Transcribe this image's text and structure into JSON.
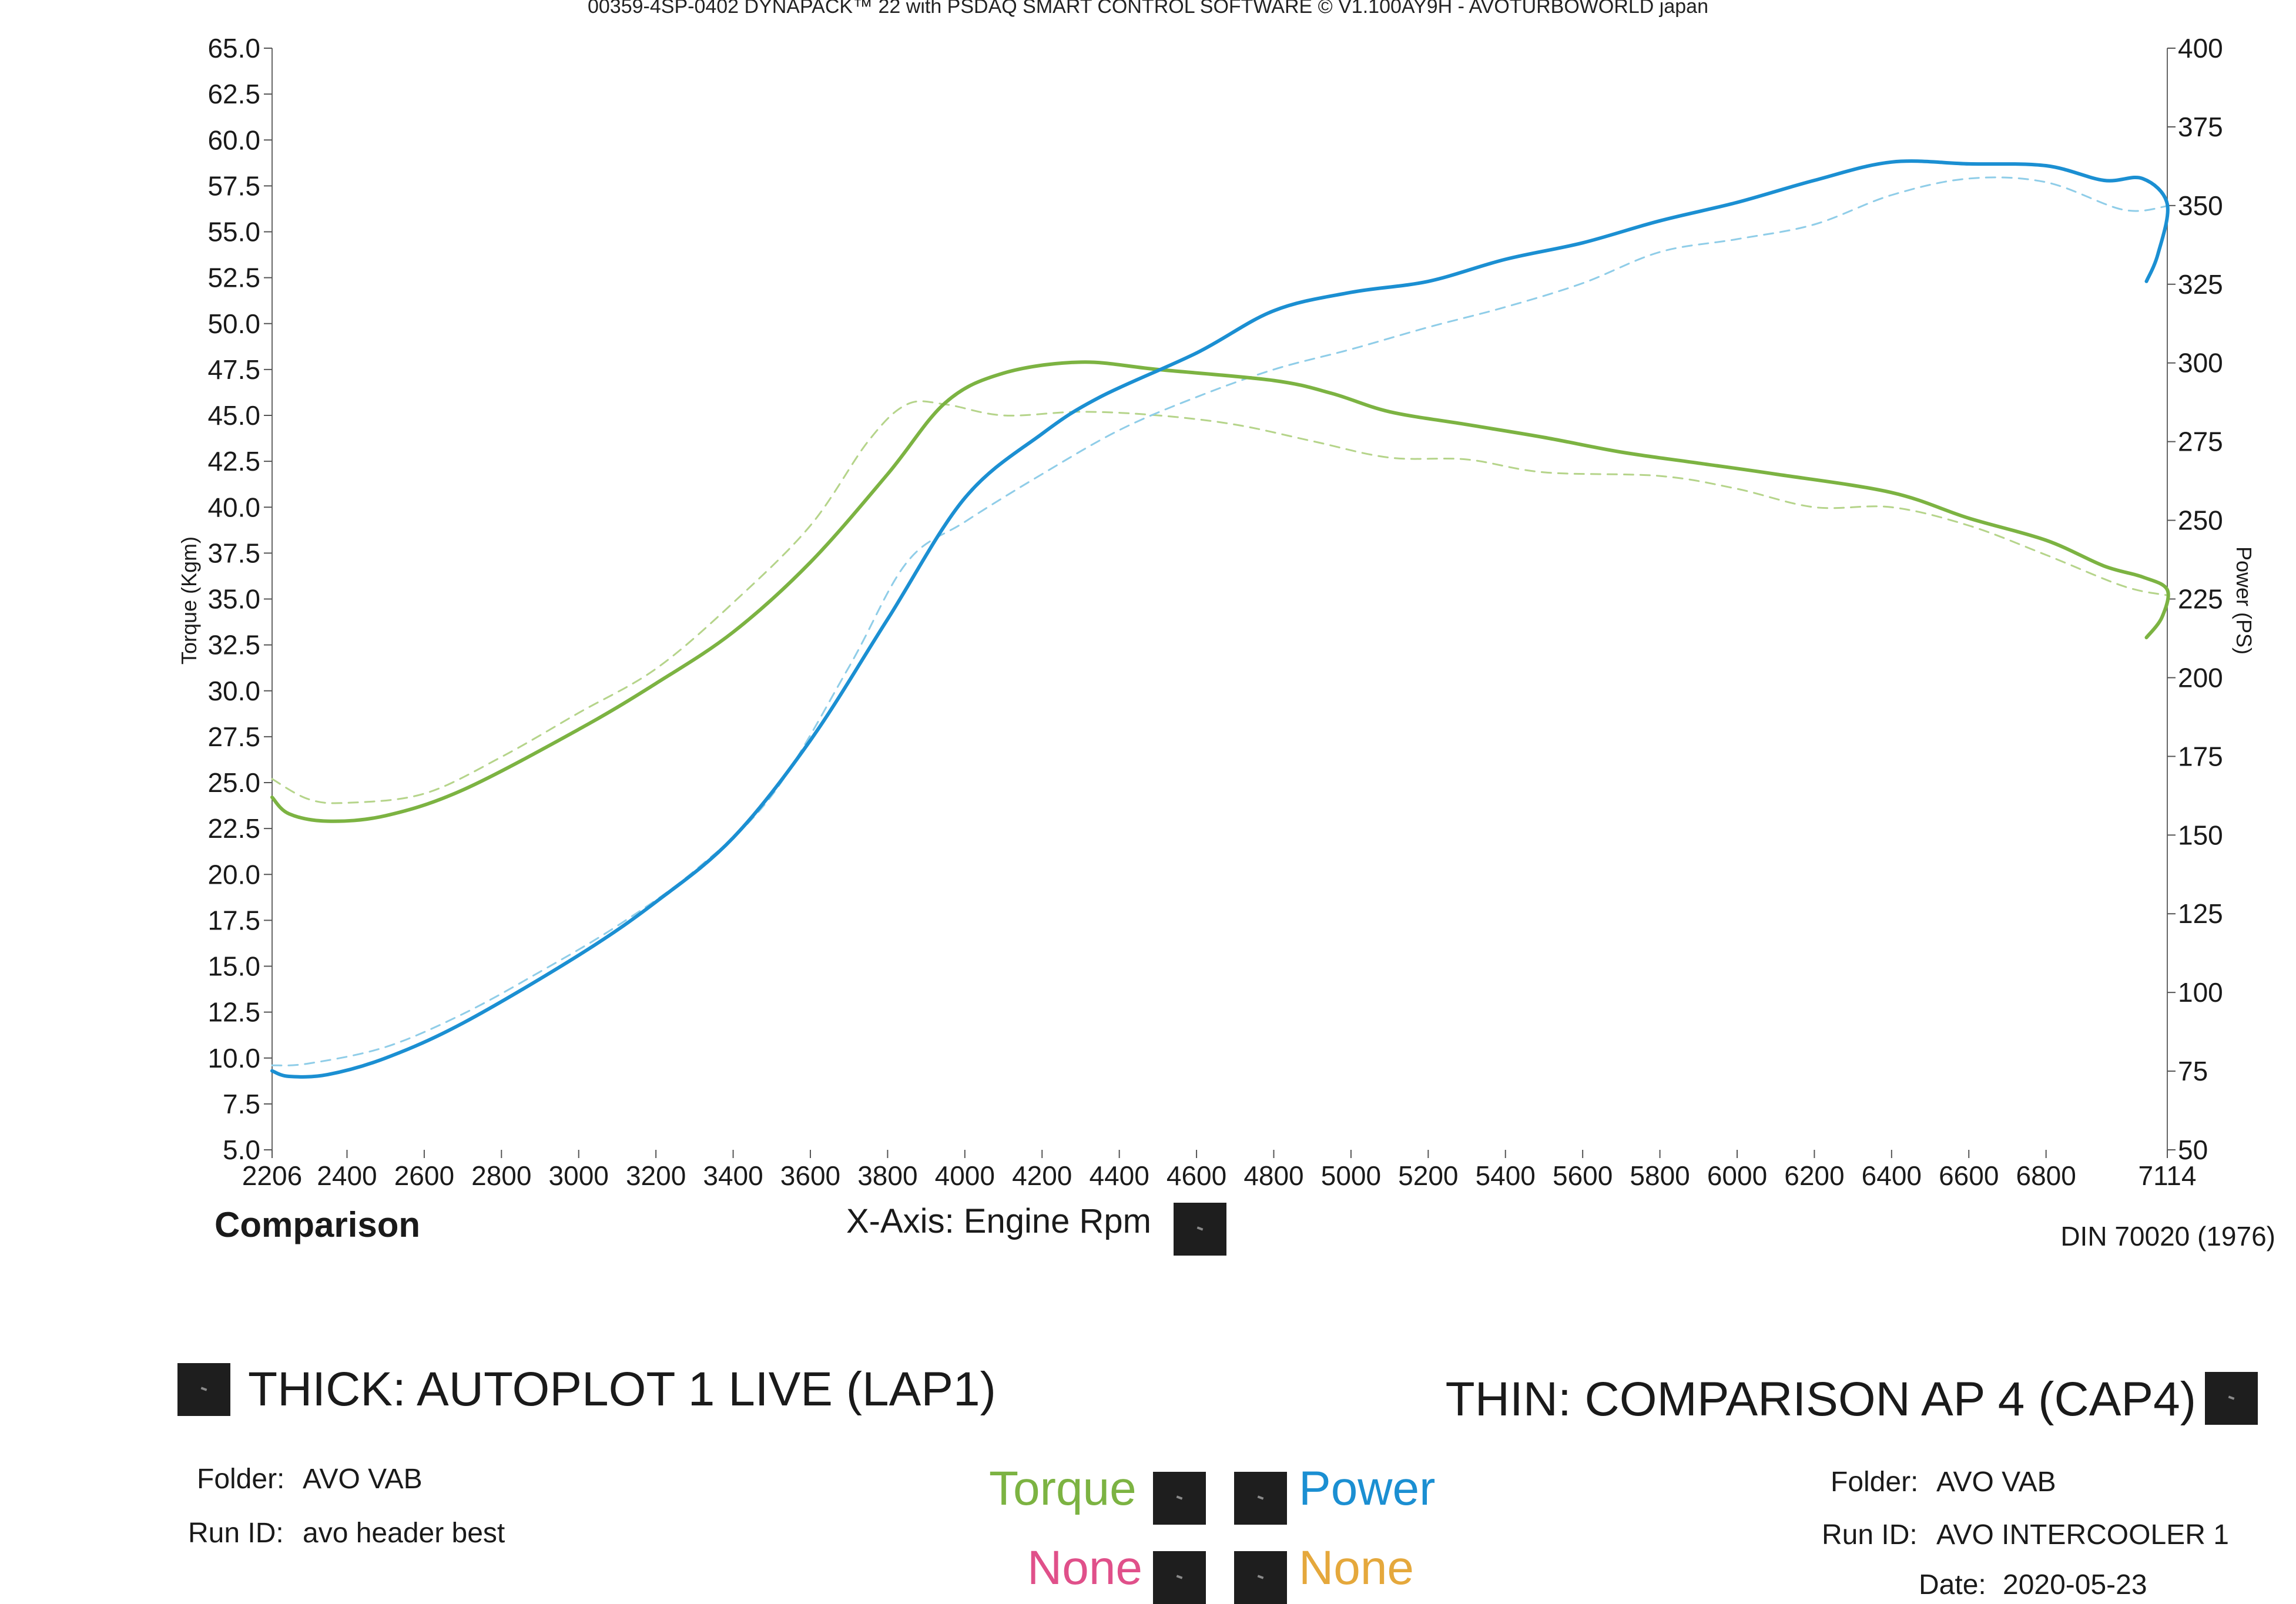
{
  "header": {
    "title": "00359-4SP-0402 DYNAPACK™ 22 with PSDAQ SMART CONTROL SOFTWARE © V1.100AY9H - AVOTURBOWORLD japan"
  },
  "footer": {
    "mode_label": "Comparison",
    "xaxis_label": "X-Axis: Engine Rpm",
    "standard": "DIN 70020 (1976)"
  },
  "runs": {
    "thick": {
      "label": "THICK: AUTOPLOT 1 LIVE (LAP1)",
      "folder_key": "Folder:",
      "folder": "AVO VAB",
      "runid_key": "Run ID:",
      "runid": "avo header best"
    },
    "thin": {
      "label": "THIN: COMPARISON AP 4 (CAP4)",
      "folder_key": "Folder:",
      "folder": "AVO VAB",
      "runid_key": "Run ID:",
      "runid": "AVO INTERCOOLER 1",
      "date_key": "Date:",
      "date": "2020-05-23"
    }
  },
  "legend": {
    "torque": "Torque",
    "power": "Power",
    "none1": "None",
    "none2": "None",
    "colors": {
      "torque": "#7cb342",
      "power": "#1b8fd2",
      "none1": "#e0508a",
      "none2": "#e5a83c"
    }
  },
  "chart_data": {
    "type": "line",
    "xlabel": "Engine Rpm",
    "ylabel_left": "Torque (Kgm)",
    "ylabel_right": "Power (PS)",
    "xlim": [
      2206,
      7114
    ],
    "ylim_left": [
      5.0,
      65.0
    ],
    "ylim_right": [
      50,
      400
    ],
    "x_ticks": [
      "2206",
      "2400",
      "2600",
      "2800",
      "3000",
      "3200",
      "3400",
      "3600",
      "3800",
      "4000",
      "4200",
      "4400",
      "4600",
      "4800",
      "5000",
      "5200",
      "5400",
      "5600",
      "5800",
      "6000",
      "6200",
      "6400",
      "6600",
      "6800",
      "7114"
    ],
    "y_left_ticks": [
      "65.0",
      "62.5",
      "60.0",
      "57.5",
      "55.0",
      "52.5",
      "50.0",
      "47.5",
      "45.0",
      "42.5",
      "40.0",
      "37.5",
      "35.0",
      "32.5",
      "30.0",
      "27.5",
      "25.0",
      "22.5",
      "20.0",
      "17.5",
      "15.0",
      "12.5",
      "10.0",
      "7.5",
      "5.0"
    ],
    "y_right_ticks": [
      "400",
      "375",
      "350",
      "325",
      "300",
      "275",
      "250",
      "225",
      "200",
      "175",
      "150",
      "125",
      "100",
      "75",
      "50"
    ],
    "series": [
      {
        "name": "Torque",
        "run": "THICK",
        "axis": "left",
        "color": "#7cb342",
        "points": [
          [
            2206,
            24.2
          ],
          [
            2250,
            23.3
          ],
          [
            2350,
            22.9
          ],
          [
            2500,
            23.2
          ],
          [
            2700,
            24.6
          ],
          [
            3000,
            27.9
          ],
          [
            3200,
            30.4
          ],
          [
            3400,
            33.2
          ],
          [
            3600,
            37.0
          ],
          [
            3800,
            41.8
          ],
          [
            3950,
            45.7
          ],
          [
            4100,
            47.3
          ],
          [
            4300,
            47.9
          ],
          [
            4500,
            47.5
          ],
          [
            4800,
            46.9
          ],
          [
            4950,
            46.2
          ],
          [
            5100,
            45.2
          ],
          [
            5300,
            44.5
          ],
          [
            5500,
            43.8
          ],
          [
            5700,
            43.0
          ],
          [
            5900,
            42.4
          ],
          [
            6100,
            41.8
          ],
          [
            6400,
            40.8
          ],
          [
            6600,
            39.4
          ],
          [
            6800,
            38.2
          ],
          [
            6950,
            36.8
          ],
          [
            7050,
            36.2
          ],
          [
            7114,
            35.5
          ],
          [
            7100,
            34.0
          ],
          [
            7060,
            32.9
          ]
        ]
      },
      {
        "name": "Power",
        "run": "THICK",
        "axis": "left",
        "color": "#1b8fd2",
        "points": [
          [
            2206,
            9.3
          ],
          [
            2250,
            9.0
          ],
          [
            2350,
            9.1
          ],
          [
            2500,
            10.0
          ],
          [
            2700,
            11.9
          ],
          [
            3000,
            15.6
          ],
          [
            3200,
            18.5
          ],
          [
            3400,
            22.0
          ],
          [
            3600,
            27.3
          ],
          [
            3800,
            33.9
          ],
          [
            4000,
            40.5
          ],
          [
            4200,
            44.0
          ],
          [
            4350,
            46.0
          ],
          [
            4600,
            48.4
          ],
          [
            4800,
            50.7
          ],
          [
            5000,
            51.7
          ],
          [
            5200,
            52.3
          ],
          [
            5400,
            53.5
          ],
          [
            5600,
            54.4
          ],
          [
            5800,
            55.6
          ],
          [
            6000,
            56.6
          ],
          [
            6200,
            57.8
          ],
          [
            6400,
            58.8
          ],
          [
            6600,
            58.7
          ],
          [
            6800,
            58.6
          ],
          [
            6950,
            57.8
          ],
          [
            7050,
            57.9
          ],
          [
            7114,
            56.5
          ],
          [
            7090,
            53.8
          ],
          [
            7060,
            52.3
          ]
        ]
      },
      {
        "name": "Torque",
        "run": "THIN",
        "axis": "left",
        "color": "#b5d48a",
        "points": [
          [
            2206,
            25.2
          ],
          [
            2300,
            24.1
          ],
          [
            2400,
            23.9
          ],
          [
            2600,
            24.4
          ],
          [
            2800,
            26.4
          ],
          [
            3000,
            28.8
          ],
          [
            3200,
            31.2
          ],
          [
            3400,
            34.8
          ],
          [
            3600,
            39.0
          ],
          [
            3750,
            43.6
          ],
          [
            3850,
            45.6
          ],
          [
            3950,
            45.6
          ],
          [
            4100,
            45.0
          ],
          [
            4300,
            45.2
          ],
          [
            4500,
            45.0
          ],
          [
            4700,
            44.5
          ],
          [
            4900,
            43.6
          ],
          [
            5100,
            42.7
          ],
          [
            5300,
            42.6
          ],
          [
            5500,
            41.9
          ],
          [
            5800,
            41.7
          ],
          [
            6000,
            41.0
          ],
          [
            6200,
            40.0
          ],
          [
            6400,
            40.0
          ],
          [
            6600,
            39.0
          ],
          [
            6800,
            37.4
          ],
          [
            7000,
            35.7
          ],
          [
            7114,
            35.2
          ]
        ]
      },
      {
        "name": "Power",
        "run": "THIN",
        "axis": "left",
        "color": "#8fcde8",
        "points": [
          [
            2206,
            9.6
          ],
          [
            2300,
            9.7
          ],
          [
            2500,
            10.6
          ],
          [
            2700,
            12.4
          ],
          [
            2900,
            14.7
          ],
          [
            3100,
            17.2
          ],
          [
            3300,
            20.2
          ],
          [
            3500,
            24.3
          ],
          [
            3700,
            31.3
          ],
          [
            3850,
            37.0
          ],
          [
            4000,
            39.2
          ],
          [
            4200,
            41.8
          ],
          [
            4400,
            44.2
          ],
          [
            4600,
            46.0
          ],
          [
            4800,
            47.5
          ],
          [
            5000,
            48.6
          ],
          [
            5200,
            49.8
          ],
          [
            5400,
            50.9
          ],
          [
            5600,
            52.2
          ],
          [
            5800,
            53.9
          ],
          [
            6000,
            54.6
          ],
          [
            6200,
            55.4
          ],
          [
            6400,
            57.0
          ],
          [
            6600,
            57.9
          ],
          [
            6800,
            57.7
          ],
          [
            7000,
            56.2
          ],
          [
            7114,
            56.4
          ]
        ]
      }
    ]
  }
}
